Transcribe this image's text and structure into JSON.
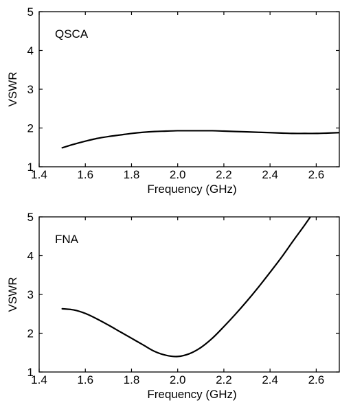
{
  "chart_data": [
    {
      "type": "line",
      "annotation": "QSCA",
      "xlabel": "Frequency (GHz)",
      "ylabel": "VSWR",
      "xlim": [
        1.4,
        2.7
      ],
      "ylim": [
        1,
        5
      ],
      "xticks": [
        "1.4",
        "1.6",
        "1.8",
        "2.0",
        "2.2",
        "2.4",
        "2.6"
      ],
      "yticks": [
        "1",
        "2",
        "3",
        "4",
        "5"
      ],
      "grid": false,
      "series": [
        {
          "x": [
            1.5,
            1.55,
            1.6,
            1.65,
            1.7,
            1.75,
            1.8,
            1.85,
            1.9,
            1.95,
            2.0,
            2.05,
            2.1,
            2.15,
            2.2,
            2.25,
            2.3,
            2.35,
            2.4,
            2.45,
            2.5,
            2.55,
            2.6,
            2.65,
            2.7
          ],
          "y": [
            1.49,
            1.58,
            1.66,
            1.73,
            1.78,
            1.82,
            1.86,
            1.89,
            1.91,
            1.92,
            1.93,
            1.93,
            1.93,
            1.93,
            1.92,
            1.91,
            1.9,
            1.89,
            1.88,
            1.87,
            1.86,
            1.86,
            1.86,
            1.87,
            1.88
          ]
        }
      ]
    },
    {
      "type": "line",
      "annotation": "FNA",
      "xlabel": "Frequency (GHz)",
      "ylabel": "VSWR",
      "xlim": [
        1.4,
        2.7
      ],
      "ylim": [
        1,
        5
      ],
      "xticks": [
        "1.4",
        "1.6",
        "1.8",
        "2.0",
        "2.2",
        "2.4",
        "2.6"
      ],
      "yticks": [
        "1",
        "2",
        "3",
        "4",
        "5"
      ],
      "grid": false,
      "series": [
        {
          "x": [
            1.5,
            1.55,
            1.6,
            1.65,
            1.7,
            1.75,
            1.8,
            1.85,
            1.9,
            1.95,
            2.0,
            2.05,
            2.1,
            2.15,
            2.2,
            2.25,
            2.3,
            2.35,
            2.4,
            2.45,
            2.5,
            2.55,
            2.6
          ],
          "y": [
            2.63,
            2.6,
            2.51,
            2.37,
            2.21,
            2.04,
            1.87,
            1.7,
            1.53,
            1.43,
            1.4,
            1.47,
            1.63,
            1.87,
            2.17,
            2.49,
            2.83,
            3.19,
            3.57,
            3.96,
            4.38,
            4.79,
            5.22
          ]
        }
      ]
    }
  ]
}
